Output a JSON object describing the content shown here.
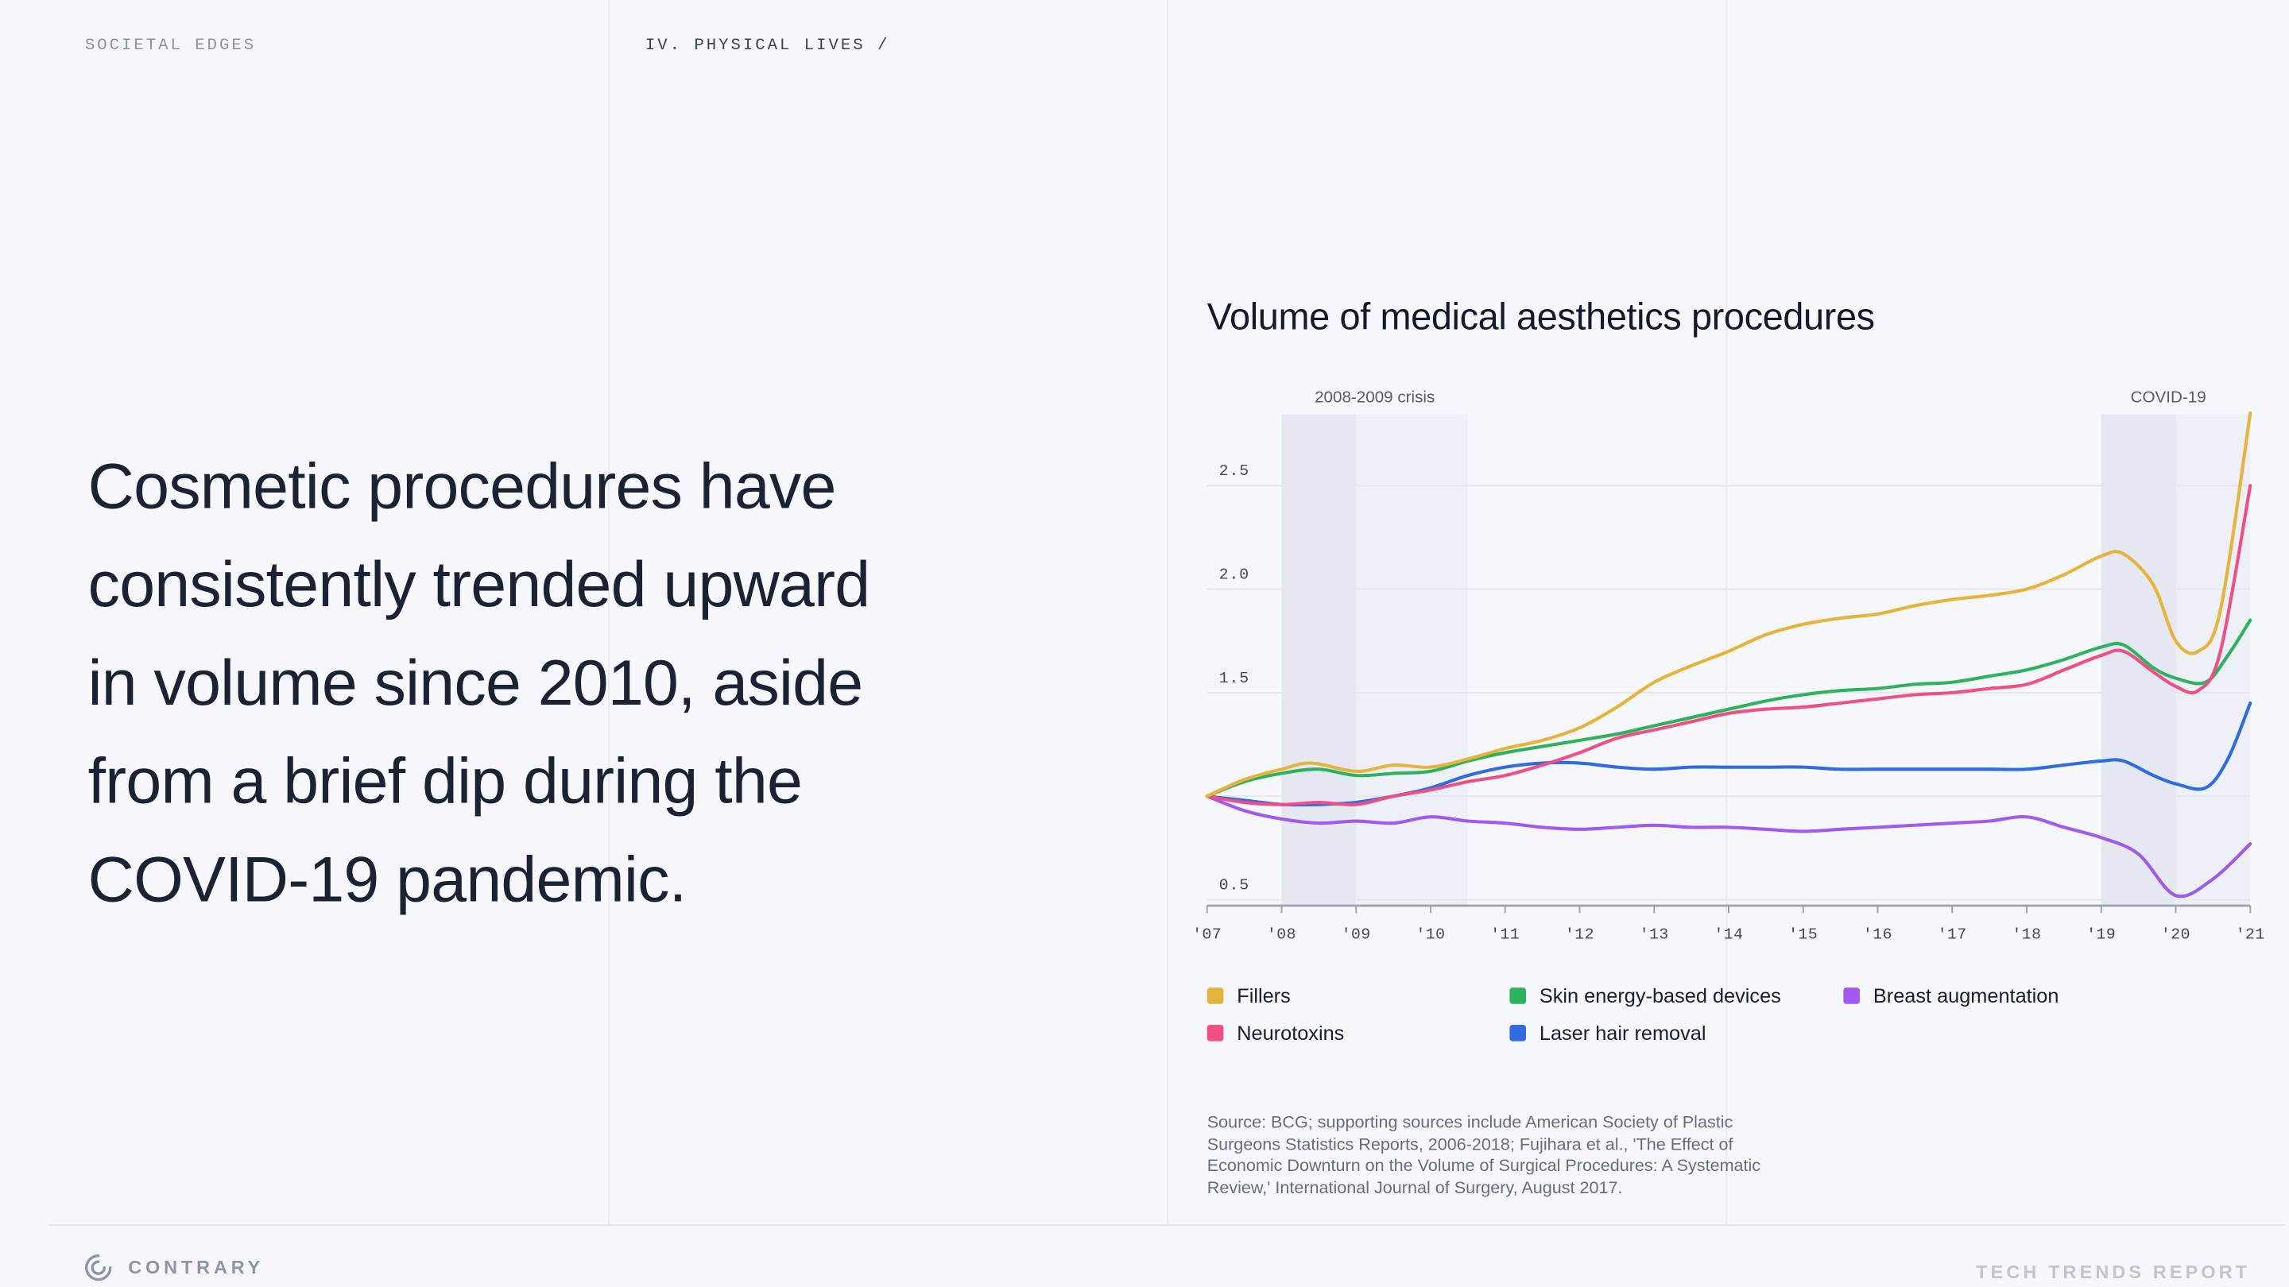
{
  "header": {
    "left_label": "SOCIETAL EDGES",
    "section_label": "IV. PHYSICAL LIVES /"
  },
  "headline": "Cosmetic procedures have\nconsistently trended upward\nin volume since 2010, aside\nfrom a brief dip during the\nCOVID-19 pandemic.",
  "chart": {
    "title": "Volume of medical aesthetics procedures",
    "source": "Source: BCG; supporting sources include American Society of Plastic\nSurgeons Statistics Reports, 2006-2018; Fujihara et al., 'The Effect of\nEconomic Downturn on the Volume of Surgical Procedures: A Systematic\nReview,' International Journal of Surgery, August 2017."
  },
  "chart_data": {
    "type": "line",
    "title": "Volume of medical aesthetics procedures",
    "xlim": [
      2007,
      2021
    ],
    "ylim": [
      0.45,
      2.9
    ],
    "grid": "horizontal",
    "x_ticks": [
      {
        "year": 2007,
        "label": "'07"
      },
      {
        "year": 2008,
        "label": "'08"
      },
      {
        "year": 2009,
        "label": "'09"
      },
      {
        "year": 2010,
        "label": "'10"
      },
      {
        "year": 2011,
        "label": "'11"
      },
      {
        "year": 2012,
        "label": "'12"
      },
      {
        "year": 2013,
        "label": "'13"
      },
      {
        "year": 2014,
        "label": "'14"
      },
      {
        "year": 2015,
        "label": "'15"
      },
      {
        "year": 2016,
        "label": "'16"
      },
      {
        "year": 2017,
        "label": "'17"
      },
      {
        "year": 2018,
        "label": "'18"
      },
      {
        "year": 2019,
        "label": "'19"
      },
      {
        "year": 2020,
        "label": "'20"
      },
      {
        "year": 2021,
        "label": "'21"
      }
    ],
    "y_ticks": [
      {
        "value": 2.5,
        "label": "2.5"
      },
      {
        "value": 2.0,
        "label": "2.0"
      },
      {
        "value": 1.5,
        "label": "1.5"
      },
      {
        "value": 1.0,
        "label": ""
      },
      {
        "value": 0.5,
        "label": "0.5"
      }
    ],
    "regions": [
      {
        "label": "2008-2009 crisis",
        "start": 2008,
        "mid": 2009,
        "end": 2010.5,
        "label_year": 2009.25
      },
      {
        "label": "COVID-19",
        "start": 2019,
        "mid": 2020,
        "end": 2021,
        "label_year": 2019.9
      }
    ],
    "series": [
      {
        "name": "Laser hair removal",
        "color": "#2F6CE2",
        "points": [
          [
            2007,
            1.0
          ],
          [
            2007.5,
            0.98
          ],
          [
            2008,
            0.96
          ],
          [
            2008.5,
            0.96
          ],
          [
            2009,
            0.97
          ],
          [
            2009.5,
            1.0
          ],
          [
            2010,
            1.04
          ],
          [
            2010.5,
            1.1
          ],
          [
            2011,
            1.14
          ],
          [
            2011.5,
            1.16
          ],
          [
            2012,
            1.16
          ],
          [
            2012.5,
            1.14
          ],
          [
            2013,
            1.13
          ],
          [
            2013.5,
            1.14
          ],
          [
            2014,
            1.14
          ],
          [
            2014.5,
            1.14
          ],
          [
            2015,
            1.14
          ],
          [
            2015.5,
            1.13
          ],
          [
            2016,
            1.13
          ],
          [
            2016.5,
            1.13
          ],
          [
            2017,
            1.13
          ],
          [
            2017.5,
            1.13
          ],
          [
            2018,
            1.13
          ],
          [
            2018.5,
            1.15
          ],
          [
            2019,
            1.17
          ],
          [
            2019.3,
            1.17
          ],
          [
            2019.7,
            1.1
          ],
          [
            2020,
            1.06
          ],
          [
            2020.4,
            1.04
          ],
          [
            2020.7,
            1.18
          ],
          [
            2021,
            1.45
          ]
        ]
      },
      {
        "name": "Breast augmentation",
        "color": "#A159EF",
        "points": [
          [
            2007,
            1.0
          ],
          [
            2007.5,
            0.93
          ],
          [
            2008,
            0.89
          ],
          [
            2008.5,
            0.87
          ],
          [
            2009,
            0.88
          ],
          [
            2009.5,
            0.87
          ],
          [
            2010,
            0.9
          ],
          [
            2010.5,
            0.88
          ],
          [
            2011,
            0.87
          ],
          [
            2011.5,
            0.85
          ],
          [
            2012,
            0.84
          ],
          [
            2012.5,
            0.85
          ],
          [
            2013,
            0.86
          ],
          [
            2013.5,
            0.85
          ],
          [
            2014,
            0.85
          ],
          [
            2014.5,
            0.84
          ],
          [
            2015,
            0.83
          ],
          [
            2015.5,
            0.84
          ],
          [
            2016,
            0.85
          ],
          [
            2016.5,
            0.86
          ],
          [
            2017,
            0.87
          ],
          [
            2017.5,
            0.88
          ],
          [
            2018,
            0.9
          ],
          [
            2018.5,
            0.85
          ],
          [
            2019,
            0.8
          ],
          [
            2019.5,
            0.72
          ],
          [
            2020,
            0.52
          ],
          [
            2020.5,
            0.6
          ],
          [
            2021,
            0.77
          ]
        ]
      },
      {
        "name": "Skin energy-based devices",
        "color": "#2FB25D",
        "points": [
          [
            2007,
            1.0
          ],
          [
            2007.5,
            1.07
          ],
          [
            2008,
            1.11
          ],
          [
            2008.5,
            1.13
          ],
          [
            2009,
            1.1
          ],
          [
            2009.5,
            1.11
          ],
          [
            2010,
            1.12
          ],
          [
            2010.5,
            1.17
          ],
          [
            2011,
            1.21
          ],
          [
            2011.5,
            1.24
          ],
          [
            2012,
            1.27
          ],
          [
            2012.5,
            1.3
          ],
          [
            2013,
            1.34
          ],
          [
            2013.5,
            1.38
          ],
          [
            2014,
            1.42
          ],
          [
            2014.5,
            1.46
          ],
          [
            2015,
            1.49
          ],
          [
            2015.5,
            1.51
          ],
          [
            2016,
            1.52
          ],
          [
            2016.5,
            1.54
          ],
          [
            2017,
            1.55
          ],
          [
            2017.5,
            1.58
          ],
          [
            2018,
            1.61
          ],
          [
            2018.5,
            1.66
          ],
          [
            2019,
            1.72
          ],
          [
            2019.3,
            1.73
          ],
          [
            2019.7,
            1.62
          ],
          [
            2020,
            1.57
          ],
          [
            2020.4,
            1.55
          ],
          [
            2020.7,
            1.68
          ],
          [
            2021,
            1.85
          ]
        ]
      },
      {
        "name": "Neurotoxins",
        "color": "#EE4F87",
        "points": [
          [
            2007,
            1.0
          ],
          [
            2007.5,
            0.97
          ],
          [
            2008,
            0.96
          ],
          [
            2008.5,
            0.97
          ],
          [
            2009,
            0.96
          ],
          [
            2009.5,
            1.0
          ],
          [
            2010,
            1.03
          ],
          [
            2010.5,
            1.07
          ],
          [
            2011,
            1.1
          ],
          [
            2011.5,
            1.15
          ],
          [
            2012,
            1.21
          ],
          [
            2012.5,
            1.28
          ],
          [
            2013,
            1.32
          ],
          [
            2013.5,
            1.36
          ],
          [
            2014,
            1.4
          ],
          [
            2014.5,
            1.42
          ],
          [
            2015,
            1.43
          ],
          [
            2015.5,
            1.45
          ],
          [
            2016,
            1.47
          ],
          [
            2016.5,
            1.49
          ],
          [
            2017,
            1.5
          ],
          [
            2017.5,
            1.52
          ],
          [
            2018,
            1.54
          ],
          [
            2018.5,
            1.61
          ],
          [
            2019,
            1.68
          ],
          [
            2019.3,
            1.7
          ],
          [
            2019.7,
            1.6
          ],
          [
            2020,
            1.53
          ],
          [
            2020.3,
            1.51
          ],
          [
            2020.6,
            1.7
          ],
          [
            2021,
            2.5
          ]
        ]
      },
      {
        "name": "Fillers",
        "color": "#E6B33C",
        "points": [
          [
            2007,
            1.0
          ],
          [
            2007.5,
            1.08
          ],
          [
            2008,
            1.13
          ],
          [
            2008.4,
            1.16
          ],
          [
            2009,
            1.12
          ],
          [
            2009.5,
            1.15
          ],
          [
            2010,
            1.14
          ],
          [
            2010.5,
            1.18
          ],
          [
            2011,
            1.23
          ],
          [
            2011.5,
            1.27
          ],
          [
            2012,
            1.33
          ],
          [
            2012.5,
            1.43
          ],
          [
            2013,
            1.55
          ],
          [
            2013.5,
            1.63
          ],
          [
            2014,
            1.7
          ],
          [
            2014.5,
            1.78
          ],
          [
            2015,
            1.83
          ],
          [
            2015.5,
            1.86
          ],
          [
            2016,
            1.88
          ],
          [
            2016.5,
            1.92
          ],
          [
            2017,
            1.95
          ],
          [
            2017.5,
            1.97
          ],
          [
            2018,
            2.0
          ],
          [
            2018.5,
            2.07
          ],
          [
            2019,
            2.16
          ],
          [
            2019.3,
            2.17
          ],
          [
            2019.7,
            2.02
          ],
          [
            2020,
            1.75
          ],
          [
            2020.3,
            1.7
          ],
          [
            2020.6,
            1.9
          ],
          [
            2021,
            2.85
          ]
        ]
      }
    ],
    "legend": [
      {
        "label": "Fillers",
        "color": "#E6B33C"
      },
      {
        "label": "Skin energy-based devices",
        "color": "#2FB25D"
      },
      {
        "label": "Breast augmentation",
        "color": "#A159EF"
      },
      {
        "label": "Neurotoxins",
        "color": "#EE4F87"
      },
      {
        "label": "Laser hair removal",
        "color": "#2F6CE2"
      }
    ]
  },
  "footer": {
    "brand": "CONTRARY",
    "right": "TECH TRENDS REPORT"
  }
}
